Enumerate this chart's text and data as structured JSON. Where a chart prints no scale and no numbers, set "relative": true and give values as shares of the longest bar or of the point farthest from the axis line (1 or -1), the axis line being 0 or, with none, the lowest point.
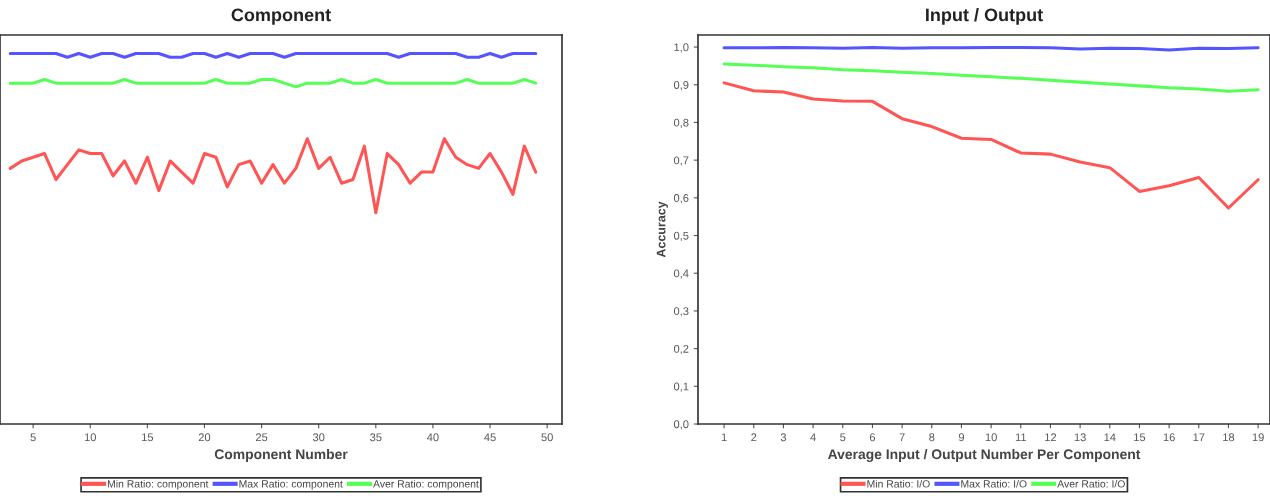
{
  "chart_data": [
    {
      "type": "line",
      "title": "Component",
      "xlabel": "Component Number",
      "relative": true,
      "legend": "bottom",
      "x": [
        3,
        4,
        5,
        6,
        7,
        8,
        9,
        10,
        11,
        12,
        13,
        14,
        15,
        16,
        17,
        18,
        19,
        20,
        21,
        22,
        23,
        24,
        25,
        26,
        27,
        28,
        29,
        30,
        31,
        32,
        33,
        34,
        35,
        36,
        37,
        38,
        39,
        40,
        41,
        42,
        43,
        44,
        45,
        46,
        47,
        48,
        49
      ],
      "xlim": [
        2.1,
        51.3
      ],
      "xticks": [
        5,
        10,
        15,
        20,
        25,
        30,
        35,
        40,
        45,
        50
      ],
      "series": [
        {
          "name": "Min Ratio: component",
          "color": "#ff5555",
          "values": [
            0.69,
            0.71,
            0.72,
            0.73,
            0.66,
            0.7,
            0.74,
            0.73,
            0.73,
            0.67,
            0.71,
            0.65,
            0.72,
            0.63,
            0.71,
            0.68,
            0.65,
            0.73,
            0.72,
            0.64,
            0.7,
            0.71,
            0.65,
            0.7,
            0.65,
            0.69,
            0.77,
            0.69,
            0.72,
            0.65,
            0.66,
            0.75,
            0.57,
            0.73,
            0.7,
            0.65,
            0.68,
            0.68,
            0.77,
            0.72,
            0.7,
            0.69,
            0.73,
            0.68,
            0.62,
            0.75,
            0.68
          ]
        },
        {
          "name": "Max Ratio: component",
          "color": "#5555ff",
          "values": [
            1.0,
            1.0,
            1.0,
            1.0,
            1.0,
            0.99,
            1.0,
            0.99,
            1.0,
            1.0,
            0.99,
            1.0,
            1.0,
            1.0,
            0.99,
            0.99,
            1.0,
            1.0,
            0.99,
            1.0,
            0.99,
            1.0,
            1.0,
            1.0,
            0.99,
            1.0,
            1.0,
            1.0,
            1.0,
            1.0,
            1.0,
            1.0,
            1.0,
            1.0,
            0.99,
            1.0,
            1.0,
            1.0,
            1.0,
            1.0,
            0.99,
            0.99,
            1.0,
            0.99,
            1.0,
            1.0,
            1.0
          ]
        },
        {
          "name": "Aver Ratio: component",
          "color": "#55ff55",
          "values": [
            0.92,
            0.92,
            0.92,
            0.93,
            0.92,
            0.92,
            0.92,
            0.92,
            0.92,
            0.92,
            0.93,
            0.92,
            0.92,
            0.92,
            0.92,
            0.92,
            0.92,
            0.92,
            0.93,
            0.92,
            0.92,
            0.92,
            0.93,
            0.93,
            0.92,
            0.91,
            0.92,
            0.92,
            0.92,
            0.93,
            0.92,
            0.92,
            0.93,
            0.92,
            0.92,
            0.92,
            0.92,
            0.92,
            0.92,
            0.92,
            0.93,
            0.92,
            0.92,
            0.92,
            0.92,
            0.93,
            0.92
          ]
        }
      ]
    },
    {
      "type": "line",
      "title": "Input / Output",
      "xlabel": "Average Input / Output Number Per Component",
      "ylabel": "Accuracy",
      "legend": "bottom",
      "x": [
        1,
        2,
        3,
        4,
        5,
        6,
        7,
        8,
        9,
        10,
        11,
        12,
        13,
        14,
        15,
        16,
        17,
        18,
        19
      ],
      "xlim": [
        0.12,
        19.4
      ],
      "xticks": [
        1,
        2,
        3,
        4,
        5,
        6,
        7,
        8,
        9,
        10,
        11,
        12,
        13,
        14,
        15,
        16,
        17,
        18,
        19
      ],
      "ylim": [
        0,
        1.032
      ],
      "yticks": [
        {
          "value": 0,
          "label": "0,0"
        },
        {
          "value": 0.1,
          "label": "0,1"
        },
        {
          "value": 0.2,
          "label": "0,2"
        },
        {
          "value": 0.3,
          "label": "0,3"
        },
        {
          "value": 0.4,
          "label": "0,4"
        },
        {
          "value": 0.5,
          "label": "0,5"
        },
        {
          "value": 0.6,
          "label": "0,6"
        },
        {
          "value": 0.7,
          "label": "0,7"
        },
        {
          "value": 0.8,
          "label": "0,8"
        },
        {
          "value": 0.9,
          "label": "0,9"
        },
        {
          "value": 1.0,
          "label": "1,0"
        }
      ],
      "series": [
        {
          "name": "Min Ratio: I/O",
          "color": "#ff5555",
          "values": [
            0.905,
            0.884,
            0.881,
            0.862,
            0.857,
            0.856,
            0.81,
            0.789,
            0.758,
            0.755,
            0.719,
            0.716,
            0.695,
            0.68,
            0.617,
            0.632,
            0.654,
            0.573,
            0.648
          ]
        },
        {
          "name": "Max Ratio: I/O",
          "color": "#5555ff",
          "values": [
            0.998,
            0.998,
            0.999,
            0.998,
            0.997,
            0.999,
            0.997,
            0.998,
            0.998,
            0.999,
            0.999,
            0.998,
            0.995,
            0.997,
            0.996,
            0.992,
            0.997,
            0.996,
            0.998
          ]
        },
        {
          "name": "Aver Ratio: I/O",
          "color": "#55ff55",
          "values": [
            0.955,
            0.952,
            0.948,
            0.945,
            0.94,
            0.937,
            0.933,
            0.93,
            0.925,
            0.921,
            0.917,
            0.912,
            0.907,
            0.902,
            0.897,
            0.892,
            0.889,
            0.883,
            0.887
          ]
        }
      ]
    }
  ]
}
